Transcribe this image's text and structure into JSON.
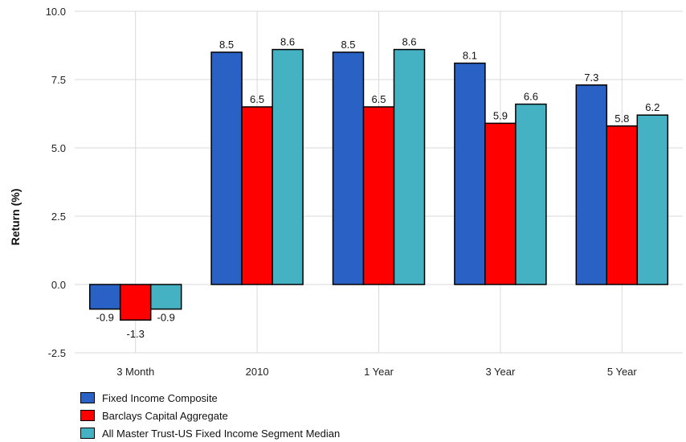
{
  "chart_data": {
    "type": "bar",
    "title": "",
    "xlabel": "",
    "ylabel": "Return (%)",
    "ylim": [
      -2.5,
      10.0
    ],
    "yticks": [
      "-2.5",
      "0.0",
      "2.5",
      "5.0",
      "7.5",
      "10.0"
    ],
    "grid": true,
    "legend_position": "bottom-left",
    "categories": [
      "3 Month",
      "2010",
      "1 Year",
      "3 Year",
      "5 Year"
    ],
    "series": [
      {
        "name": "Fixed Income Composite",
        "color": "#2962c4",
        "values": [
          -0.9,
          8.5,
          8.5,
          8.1,
          7.3
        ],
        "labels": [
          "-0.9",
          "8.5",
          "8.5",
          "8.1",
          "7.3"
        ]
      },
      {
        "name": "Barclays Capital Aggregate",
        "color": "#ff0000",
        "values": [
          -1.3,
          6.5,
          6.5,
          5.9,
          5.8
        ],
        "labels": [
          "-1.3",
          "6.5",
          "6.5",
          "5.9",
          "5.8"
        ]
      },
      {
        "name": "All Master Trust-US Fixed Income Segment Median",
        "color": "#45b2c4",
        "values": [
          -0.9,
          8.6,
          8.6,
          6.6,
          6.2
        ],
        "labels": [
          "-0.9",
          "8.6",
          "8.6",
          "6.6",
          "6.2"
        ]
      }
    ]
  }
}
